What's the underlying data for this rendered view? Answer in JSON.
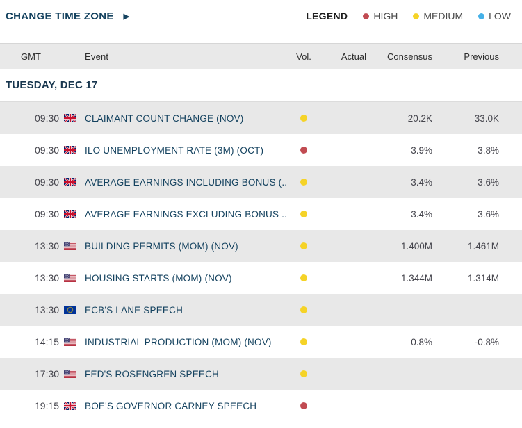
{
  "toolbar": {
    "change_time_zone_label": "CHANGE TIME ZONE",
    "arrow_icon": "▶",
    "legend": {
      "title": "LEGEND",
      "items": [
        {
          "label": "HIGH",
          "level": "high",
          "color": "#c14b52"
        },
        {
          "label": "MEDIUM",
          "level": "medium",
          "color": "#f5d327"
        },
        {
          "label": "LOW",
          "level": "low",
          "color": "#45b1e8"
        }
      ]
    }
  },
  "table": {
    "columns": [
      "GMT",
      "Event",
      "Vol.",
      "Actual",
      "Consensus",
      "Previous"
    ],
    "day_header": "TUESDAY, DEC 17",
    "rows": [
      {
        "time": "09:30",
        "country": "gb",
        "event": "CLAIMANT COUNT CHANGE (NOV)",
        "volatility": "medium",
        "actual": "",
        "consensus": "20.2K",
        "previous": "33.0K"
      },
      {
        "time": "09:30",
        "country": "gb",
        "event": "ILO UNEMPLOYMENT RATE (3M) (OCT)",
        "volatility": "high",
        "actual": "",
        "consensus": "3.9%",
        "previous": "3.8%"
      },
      {
        "time": "09:30",
        "country": "gb",
        "event": "AVERAGE EARNINGS INCLUDING BONUS (...",
        "volatility": "medium",
        "actual": "",
        "consensus": "3.4%",
        "previous": "3.6%"
      },
      {
        "time": "09:30",
        "country": "gb",
        "event": "AVERAGE EARNINGS EXCLUDING BONUS ...",
        "volatility": "medium",
        "actual": "",
        "consensus": "3.4%",
        "previous": "3.6%"
      },
      {
        "time": "13:30",
        "country": "us",
        "event": "BUILDING PERMITS (MOM) (NOV)",
        "volatility": "medium",
        "actual": "",
        "consensus": "1.400M",
        "previous": "1.461M"
      },
      {
        "time": "13:30",
        "country": "us",
        "event": "HOUSING STARTS (MOM) (NOV)",
        "volatility": "medium",
        "actual": "",
        "consensus": "1.344M",
        "previous": "1.314M"
      },
      {
        "time": "13:30",
        "country": "eu",
        "event": "ECB'S LANE SPEECH",
        "volatility": "medium",
        "actual": "",
        "consensus": "",
        "previous": ""
      },
      {
        "time": "14:15",
        "country": "us",
        "event": "INDUSTRIAL PRODUCTION (MOM) (NOV)",
        "volatility": "medium",
        "actual": "",
        "consensus": "0.8%",
        "previous": "-0.8%"
      },
      {
        "time": "17:30",
        "country": "us",
        "event": "FED'S ROSENGREN SPEECH",
        "volatility": "medium",
        "actual": "",
        "consensus": "",
        "previous": ""
      },
      {
        "time": "19:15",
        "country": "gb",
        "event": "BOE'S GOVERNOR CARNEY SPEECH",
        "volatility": "high",
        "actual": "",
        "consensus": "",
        "previous": ""
      }
    ]
  },
  "colors": {
    "high": "#c14b52",
    "medium": "#f5d327",
    "low": "#45b1e8",
    "accent_navy": "#14425f",
    "row_shade": "#e8e8e8",
    "header_bg": "#e9e9e9"
  }
}
